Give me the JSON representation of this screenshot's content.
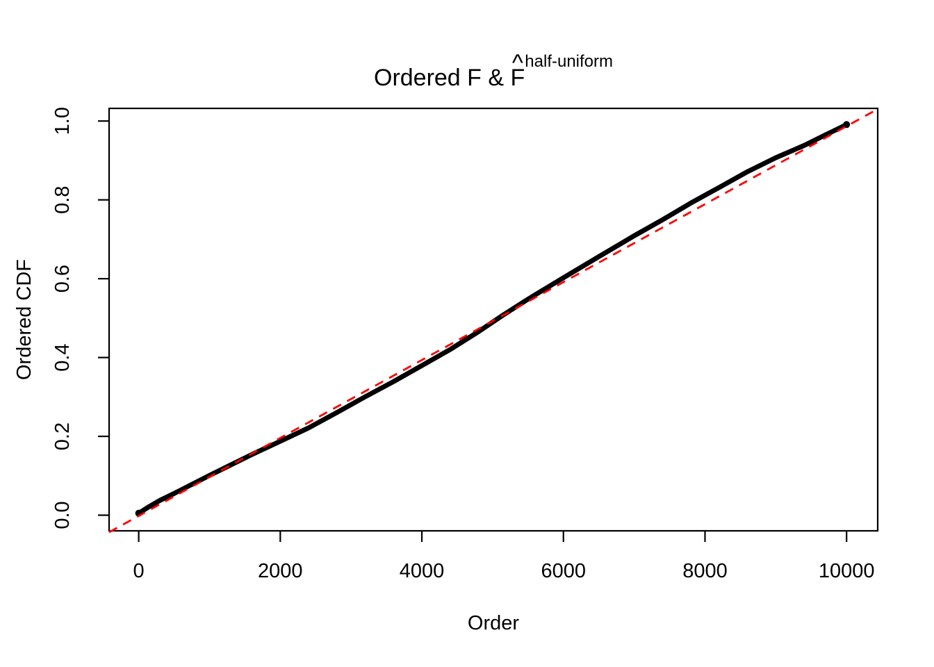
{
  "title": {
    "prefix": "Ordered F & ",
    "base": "F",
    "hat": "^",
    "superscript": "half-uniform"
  },
  "axes": {
    "x_label": "Order",
    "y_label": "Ordered CDF"
  },
  "colors": {
    "curve": "#000000",
    "reference": "#FF0000",
    "background": "#FFFFFF",
    "axis": "#000000"
  },
  "chart_data": {
    "type": "line",
    "title": "Ordered F & F^half-uniform",
    "xlabel": "Order",
    "ylabel": "Ordered CDF",
    "xlim": [
      -418,
      10444
    ],
    "ylim": [
      -0.055,
      1.055
    ],
    "x_ticks": [
      "0",
      "2000",
      "4000",
      "6000",
      "8000",
      "10000"
    ],
    "x_tick_values": [
      0,
      2000,
      4000,
      6000,
      8000,
      10000
    ],
    "y_ticks": [
      "0.0",
      "0.2",
      "0.4",
      "0.6",
      "0.8",
      "1.0"
    ],
    "y_tick_values": [
      0.0,
      0.2,
      0.4,
      0.6,
      0.8,
      1.0
    ],
    "grid": false,
    "legend": "none",
    "series": [
      {
        "name": "ordered-cdf-curve",
        "style": "solid",
        "color": "#000000",
        "line_width": 7,
        "points": [
          [
            0,
            0.005
          ],
          [
            150,
            0.022
          ],
          [
            300,
            0.0375
          ],
          [
            500,
            0.055
          ],
          [
            700,
            0.0735
          ],
          [
            1000,
            0.101
          ],
          [
            1300,
            0.1275
          ],
          [
            1600,
            0.154
          ],
          [
            2000,
            0.1875
          ],
          [
            2400,
            0.2215
          ],
          [
            2800,
            0.2605
          ],
          [
            3200,
            0.3005
          ],
          [
            3600,
            0.339
          ],
          [
            4000,
            0.3795
          ],
          [
            4400,
            0.4205
          ],
          [
            4800,
            0.4655
          ],
          [
            5150,
            0.508
          ],
          [
            5500,
            0.548
          ],
          [
            6000,
            0.6025
          ],
          [
            6500,
            0.656
          ],
          [
            7000,
            0.709
          ],
          [
            7400,
            0.7495
          ],
          [
            7800,
            0.792
          ],
          [
            8200,
            0.8315
          ],
          [
            8600,
            0.8715
          ],
          [
            9000,
            0.907
          ],
          [
            9400,
            0.938
          ],
          [
            9700,
            0.9645
          ],
          [
            9900,
            0.982
          ],
          [
            10000,
            0.991
          ]
        ]
      },
      {
        "name": "reference-diagonal",
        "style": "dashed",
        "color": "#FF0000",
        "line_width": 2.8,
        "points": [
          [
            -418,
            -0.0432
          ],
          [
            10444,
            1.0308
          ]
        ]
      }
    ]
  }
}
